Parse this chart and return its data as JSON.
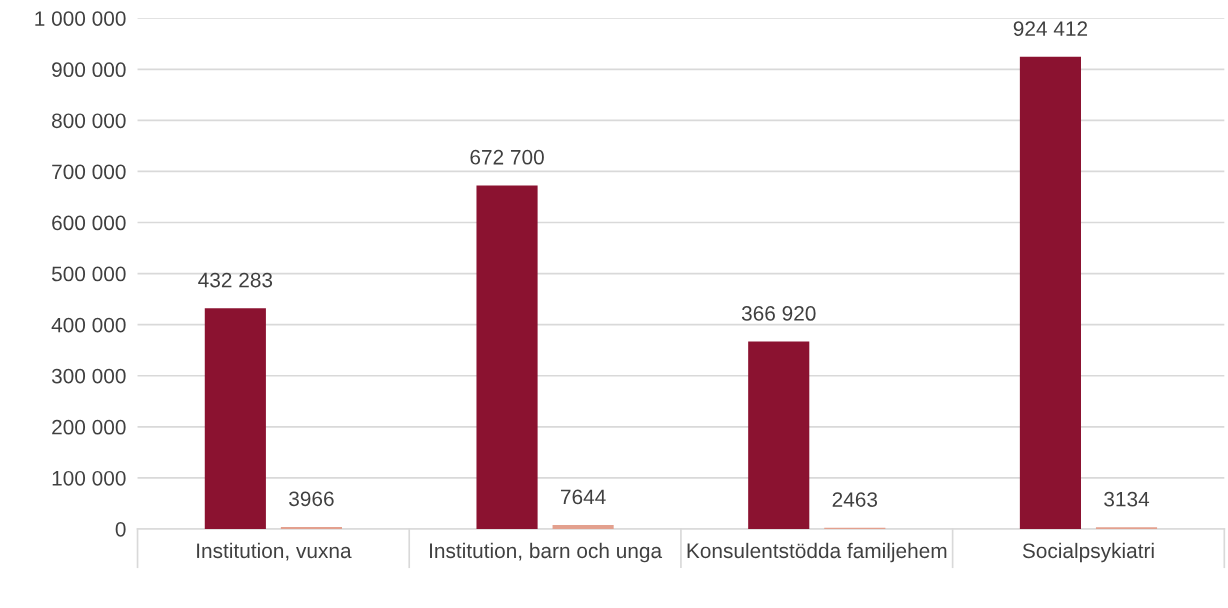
{
  "chart_data": {
    "type": "bar",
    "categories": [
      "Institution, vuxna",
      "Institution, barn och unga",
      "Konsulentstödda familjehem",
      "Socialpsykiatri"
    ],
    "series": [
      {
        "color": "#8b1230",
        "values": [
          432283,
          672700,
          366920,
          924412
        ],
        "value_labels": [
          "432 283",
          "672 700",
          "366 920",
          "924 412"
        ]
      },
      {
        "color": "#e3a08e",
        "values": [
          3966,
          7644,
          2463,
          3134
        ],
        "value_labels": [
          "3966",
          "7644",
          "2463",
          "3134"
        ]
      }
    ],
    "ylim": [
      0,
      1000000
    ],
    "yticks": [
      {
        "value": 0,
        "label": "0"
      },
      {
        "value": 100000,
        "label": "100 000"
      },
      {
        "value": 200000,
        "label": "200 000"
      },
      {
        "value": 300000,
        "label": "300 000"
      },
      {
        "value": 400000,
        "label": "400 000"
      },
      {
        "value": 500000,
        "label": "500 000"
      },
      {
        "value": 600000,
        "label": "600 000"
      },
      {
        "value": 700000,
        "label": "700 000"
      },
      {
        "value": 800000,
        "label": "800 000"
      },
      {
        "value": 900000,
        "label": "900 000"
      },
      {
        "value": 1000000,
        "label": "1 000 000"
      }
    ],
    "grid": "y",
    "legend": false
  }
}
